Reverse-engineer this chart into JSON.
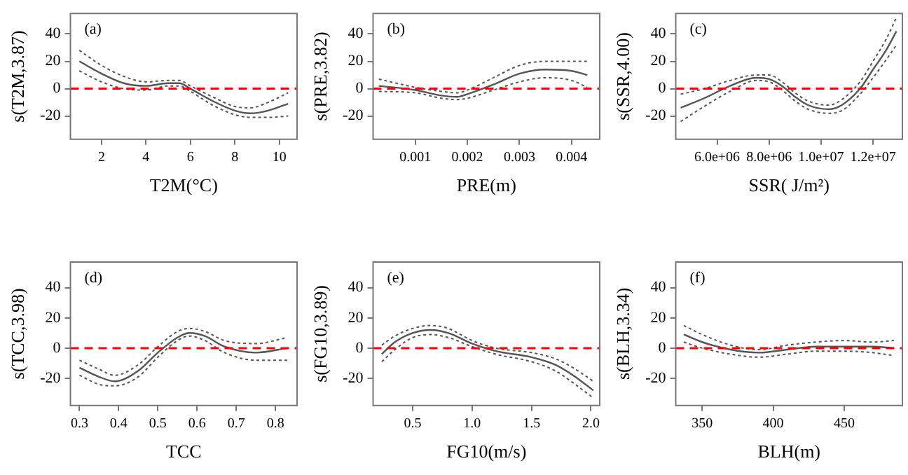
{
  "chart_data": [
    {
      "type": "line",
      "xlabel": "T2M(°C)",
      "ylabel": "s(T2M,3.87)",
      "annotations": [
        "(a)"
      ],
      "xlim": [
        0.6,
        10.8
      ],
      "xticks": [
        2,
        4,
        6,
        8,
        10
      ],
      "ylim": [
        -37,
        55
      ],
      "yticks": [
        -20,
        0,
        20,
        40
      ],
      "legend": false,
      "grid": false,
      "ref_lines": [
        {
          "axis": "y",
          "value": 0,
          "color": "#ff0000",
          "line_style": "dashed"
        }
      ],
      "x": [
        1,
        2,
        3,
        4,
        5,
        5.5,
        6,
        7,
        8,
        8.7,
        9.5,
        10.4
      ],
      "series": [
        {
          "color": "#555555",
          "line_style": "solid",
          "values": [
            20,
            11,
            4,
            2,
            4,
            4,
            0,
            -9,
            -16,
            -18,
            -16,
            -11
          ]
        },
        {
          "color": "#555555",
          "line_style": "dotted",
          "values": [
            28,
            17,
            9,
            5,
            6,
            6,
            2,
            -6,
            -13,
            -14,
            -10,
            -3
          ]
        },
        {
          "color": "#555555",
          "line_style": "dotted",
          "values": [
            13,
            5,
            0,
            -1,
            2,
            2,
            -2,
            -12,
            -19,
            -21,
            -21,
            -20
          ]
        }
      ]
    },
    {
      "type": "line",
      "xlabel": "PRE(m)",
      "ylabel": "s(PRE,3.82)",
      "annotations": [
        "(b)"
      ],
      "xlim": [
        0.00019,
        0.00454
      ],
      "xticks": [
        0.001,
        0.002,
        0.003,
        0.004
      ],
      "ylim": [
        -37,
        55
      ],
      "yticks": [
        -20,
        0,
        20,
        40
      ],
      "legend": false,
      "grid": false,
      "ref_lines": [
        {
          "axis": "y",
          "value": 0,
          "color": "#ff0000",
          "line_style": "dashed"
        }
      ],
      "x": [
        0.0003,
        0.001,
        0.0015,
        0.0018,
        0.002,
        0.0025,
        0.003,
        0.0035,
        0.004,
        0.0043
      ],
      "series": [
        {
          "color": "#555555",
          "line_style": "solid",
          "values": [
            2,
            -1,
            -5,
            -6,
            -4,
            3,
            11,
            14,
            13,
            10
          ]
        },
        {
          "color": "#555555",
          "line_style": "dotted",
          "values": [
            7,
            1,
            -2,
            -3,
            -1,
            8,
            17,
            20,
            20,
            20
          ]
        },
        {
          "color": "#555555",
          "line_style": "dotted",
          "values": [
            -2,
            -3,
            -7,
            -8,
            -7,
            -1,
            5,
            8,
            6,
            1
          ]
        }
      ]
    },
    {
      "type": "line",
      "xlabel": "SSR( J/m²)",
      "ylabel": "s(SSR,4.00)",
      "annotations": [
        "(c)"
      ],
      "xlim": [
        4410000,
        13130000
      ],
      "xticks": [
        {
          "value": 6000000,
          "label": "6.0e+06"
        },
        {
          "value": 8000000,
          "label": "8.0e+06"
        },
        {
          "value": 10000000,
          "label": "1.0e+07"
        },
        {
          "value": 12000000,
          "label": "1.2e+07"
        }
      ],
      "ylim": [
        -37,
        55
      ],
      "yticks": [
        -20,
        0,
        20,
        40
      ],
      "legend": false,
      "grid": false,
      "ref_lines": [
        {
          "axis": "y",
          "value": 0,
          "color": "#ff0000",
          "line_style": "dashed"
        }
      ],
      "x": [
        4600000,
        5500000,
        6500000,
        7500000,
        8000000,
        8500000,
        9000000,
        9500000,
        10300000,
        10800000,
        11500000,
        12000000,
        12500000,
        12900000
      ],
      "series": [
        {
          "color": "#555555",
          "line_style": "solid",
          "values": [
            -14,
            -7,
            2,
            8,
            7,
            2,
            -6,
            -12,
            -15,
            -12,
            0,
            14,
            28,
            42
          ]
        },
        {
          "color": "#555555",
          "line_style": "dotted",
          "values": [
            -4,
            0,
            6,
            10,
            10,
            5,
            -3,
            -9,
            -12,
            -8,
            5,
            20,
            36,
            52
          ]
        },
        {
          "color": "#555555",
          "line_style": "dotted",
          "values": [
            -24,
            -13,
            -2,
            6,
            5,
            -1,
            -9,
            -15,
            -18,
            -16,
            -4,
            8,
            21,
            32
          ]
        }
      ]
    },
    {
      "type": "line",
      "xlabel": "TCC",
      "ylabel": "s(TCC,3.98)",
      "annotations": [
        "(d)"
      ],
      "xlim": [
        0.277,
        0.855
      ],
      "xticks": [
        0.3,
        0.4,
        0.5,
        0.6,
        0.7,
        0.8
      ],
      "ylim": [
        -38,
        57
      ],
      "yticks": [
        -20,
        0,
        20,
        40
      ],
      "legend": false,
      "grid": false,
      "ref_lines": [
        {
          "axis": "y",
          "value": 0,
          "color": "#ff0000",
          "line_style": "dashed"
        }
      ],
      "x": [
        0.3,
        0.35,
        0.39,
        0.45,
        0.5,
        0.55,
        0.58,
        0.62,
        0.67,
        0.75,
        0.83
      ],
      "series": [
        {
          "color": "#555555",
          "line_style": "solid",
          "values": [
            -13,
            -19,
            -22,
            -15,
            -3,
            7,
            10,
            8,
            1,
            -3,
            0
          ]
        },
        {
          "color": "#555555",
          "line_style": "dotted",
          "values": [
            -8,
            -14,
            -18,
            -11,
            1,
            11,
            13,
            11,
            5,
            3,
            7
          ]
        },
        {
          "color": "#555555",
          "line_style": "dotted",
          "values": [
            -18,
            -24,
            -25,
            -19,
            -6,
            5,
            8,
            5,
            -3,
            -8,
            -8
          ]
        }
      ]
    },
    {
      "type": "line",
      "xlabel": "FG10(m/s)",
      "ylabel": "s(FG10,3.89)",
      "annotations": [
        "(e)"
      ],
      "xlim": [
        0.167,
        2.074
      ],
      "xticks": [
        {
          "value": 0.5,
          "label": "0.5"
        },
        {
          "value": 1,
          "label": "1.0"
        },
        {
          "value": 1.5,
          "label": "1.5"
        },
        {
          "value": 2,
          "label": "2.0"
        }
      ],
      "ylim": [
        -38,
        57
      ],
      "yticks": [
        -20,
        0,
        20,
        40
      ],
      "legend": false,
      "grid": false,
      "ref_lines": [
        {
          "axis": "y",
          "value": 0,
          "color": "#ff0000",
          "line_style": "dashed"
        }
      ],
      "x": [
        0.24,
        0.35,
        0.5,
        0.65,
        0.8,
        1,
        1.2,
        1.5,
        1.7,
        1.85,
        2.02
      ],
      "series": [
        {
          "color": "#555555",
          "line_style": "solid",
          "values": [
            -4,
            4,
            10,
            12,
            10,
            3,
            -2,
            -6,
            -11,
            -18,
            -28
          ]
        },
        {
          "color": "#555555",
          "line_style": "dotted",
          "values": [
            2,
            8,
            13,
            15,
            13,
            5,
            0,
            -3,
            -7,
            -13,
            -22
          ]
        },
        {
          "color": "#555555",
          "line_style": "dotted",
          "values": [
            -9,
            -1,
            7,
            9,
            7,
            1,
            -4,
            -9,
            -15,
            -23,
            -33
          ]
        }
      ]
    },
    {
      "type": "line",
      "xlabel": "BLH(m)",
      "ylabel": "s(BLH,3.34)",
      "annotations": [
        "(f)"
      ],
      "xlim": [
        331.4,
        491
      ],
      "xticks": [
        350,
        400,
        450
      ],
      "ylim": [
        -38,
        57
      ],
      "yticks": [
        -20,
        0,
        20,
        40
      ],
      "legend": false,
      "grid": false,
      "ref_lines": [
        {
          "axis": "y",
          "value": 0,
          "color": "#ff0000",
          "line_style": "dashed"
        }
      ],
      "x": [
        337,
        350,
        370,
        390,
        410,
        430,
        450,
        470,
        485
      ],
      "series": [
        {
          "color": "#555555",
          "line_style": "solid",
          "values": [
            9,
            4,
            -1,
            -3,
            -1,
            1,
            1,
            1,
            0
          ]
        },
        {
          "color": "#555555",
          "line_style": "dotted",
          "values": [
            15,
            9,
            2,
            -1,
            2,
            4,
            5,
            4,
            5
          ]
        },
        {
          "color": "#555555",
          "line_style": "dotted",
          "values": [
            4,
            0,
            -4,
            -6,
            -4,
            -2,
            -2,
            -3,
            -5
          ]
        }
      ]
    }
  ]
}
